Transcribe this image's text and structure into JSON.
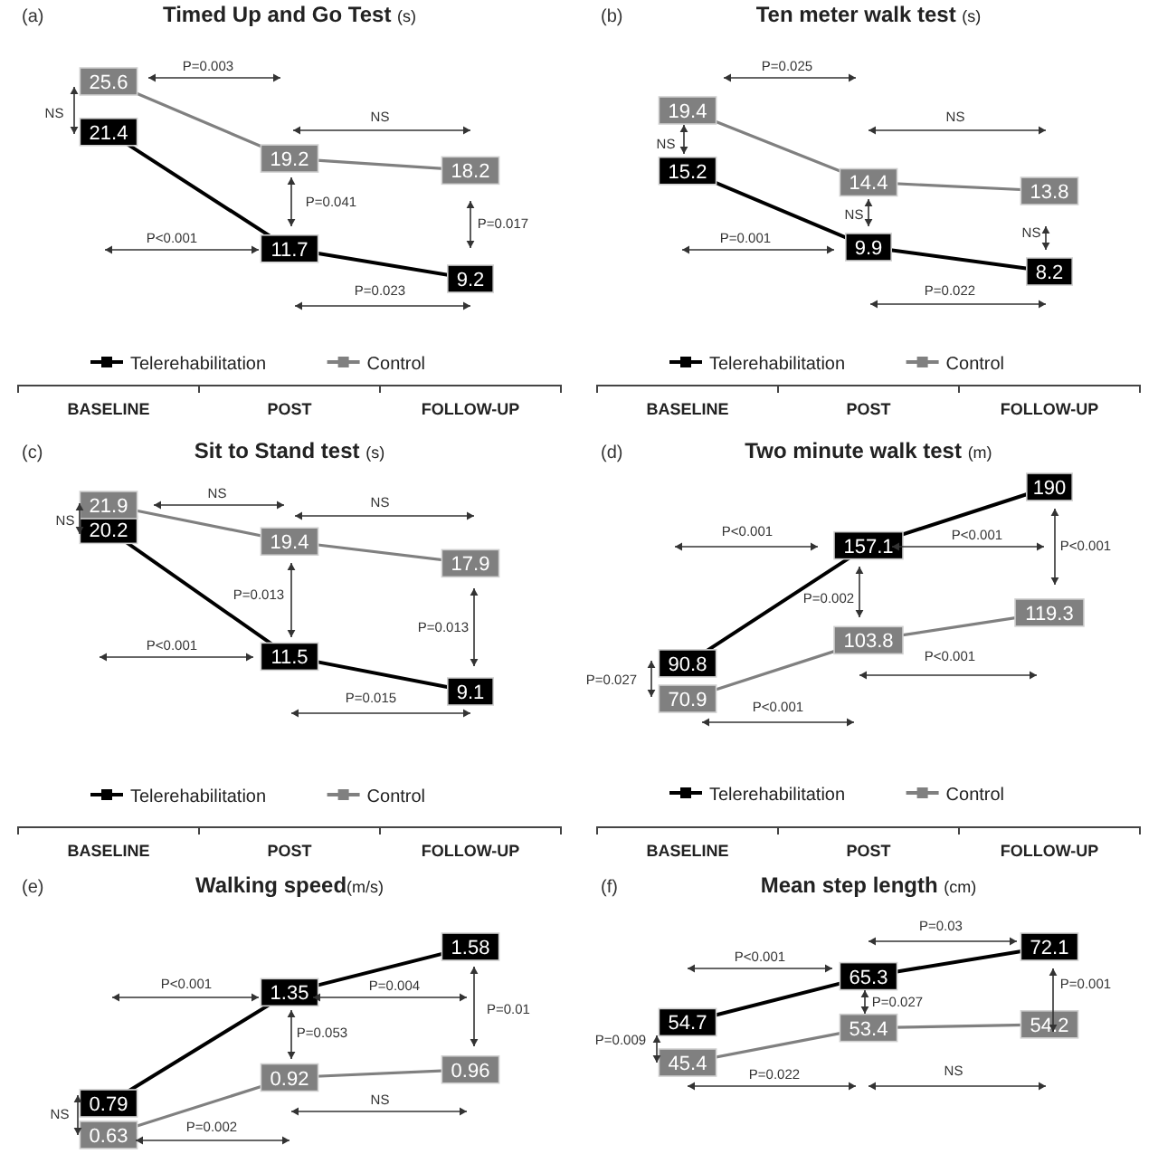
{
  "chart_data": [
    {
      "type": "line",
      "title": "Timed Up and Go Test (s)",
      "subtitle": "(a)",
      "categories": [
        "BASELINE",
        "POST",
        "FOLLOW-UP"
      ],
      "series": [
        {
          "name": "Telerehabilitation",
          "color": "#000000",
          "values": [
            21.4,
            11.7,
            9.2
          ]
        },
        {
          "name": "Control",
          "color": "#808080",
          "values": [
            25.6,
            19.2,
            18.2
          ]
        }
      ],
      "data_labels": true,
      "marker": "square",
      "legend": "bottom",
      "annotations": [
        "P=0.003",
        "NS",
        "NS",
        "P=0.041",
        "P=0.017",
        "P<0.001",
        "P=0.023"
      ]
    },
    {
      "type": "line",
      "title": "Ten meter walk test (s)",
      "subtitle": "(b)",
      "categories": [
        "BASELINE",
        "POST",
        "FOLLOW-UP"
      ],
      "series": [
        {
          "name": "Telerehabilitation",
          "color": "#000000",
          "values": [
            15.2,
            9.9,
            8.2
          ]
        },
        {
          "name": "Control",
          "color": "#808080",
          "values": [
            19.4,
            14.4,
            13.8
          ]
        }
      ],
      "data_labels": true,
      "marker": "square",
      "legend": "bottom",
      "annotations": [
        "P=0.025",
        "NS",
        "NS",
        "NS",
        "NS",
        "P=0.001",
        "P=0.022"
      ]
    },
    {
      "type": "line",
      "title": "Sit to Stand test (s)",
      "subtitle": "(c)",
      "categories": [
        "BASELINE",
        "POST",
        "FOLLOW-UP"
      ],
      "series": [
        {
          "name": "Telerehabilitation",
          "color": "#000000",
          "values": [
            20.2,
            11.5,
            9.1
          ]
        },
        {
          "name": "Control",
          "color": "#808080",
          "values": [
            21.9,
            19.4,
            17.9
          ]
        }
      ],
      "data_labels": true,
      "marker": "square",
      "legend": "bottom",
      "annotations": [
        "NS",
        "NS",
        "NS",
        "P=0.013",
        "P=0.013",
        "P<0.001",
        "P=0.015"
      ]
    },
    {
      "type": "line",
      "title": "Two minute walk test (m)",
      "subtitle": "(d)",
      "categories": [
        "BASELINE",
        "POST",
        "FOLLOW-UP"
      ],
      "series": [
        {
          "name": "Telerehabilitation",
          "color": "#000000",
          "values": [
            90.8,
            157.1,
            190
          ]
        },
        {
          "name": "Control",
          "color": "#808080",
          "values": [
            70.9,
            103.8,
            119.3
          ]
        }
      ],
      "data_labels": true,
      "marker": "square",
      "legend": "bottom",
      "annotations": [
        "P<0.001",
        "P<0.001",
        "P<0.001",
        "P=0.002",
        "P=0.027",
        "P<0.001",
        "P<0.001"
      ]
    },
    {
      "type": "line",
      "title": "Walking speed(m/s)",
      "subtitle": "(e)",
      "categories": [
        null,
        null,
        null
      ],
      "series": [
        {
          "color": "#000000",
          "values": [
            0.79,
            1.35,
            1.58
          ]
        },
        {
          "color": "#808080",
          "values": [
            0.63,
            0.92,
            0.96
          ]
        }
      ],
      "data_labels": true,
      "marker": "square",
      "annotations": [
        "P<0.001",
        "P=0.004",
        "P=0.01",
        "P=0.053",
        "NS",
        "NS",
        "P=0.002"
      ]
    },
    {
      "type": "line",
      "title": "Mean step length (cm)",
      "subtitle": "(f)",
      "categories": [
        null,
        null,
        null
      ],
      "series": [
        {
          "color": "#000000",
          "values": [
            54.7,
            65.3,
            72.1
          ]
        },
        {
          "color": "#808080",
          "values": [
            45.4,
            53.4,
            54.2
          ]
        }
      ],
      "data_labels": true,
      "marker": "square",
      "annotations": [
        "P=0.03",
        "P<0.001",
        "P=0.001",
        "P=0.027",
        "P=0.009",
        "P=0.022",
        "NS"
      ]
    }
  ]
}
